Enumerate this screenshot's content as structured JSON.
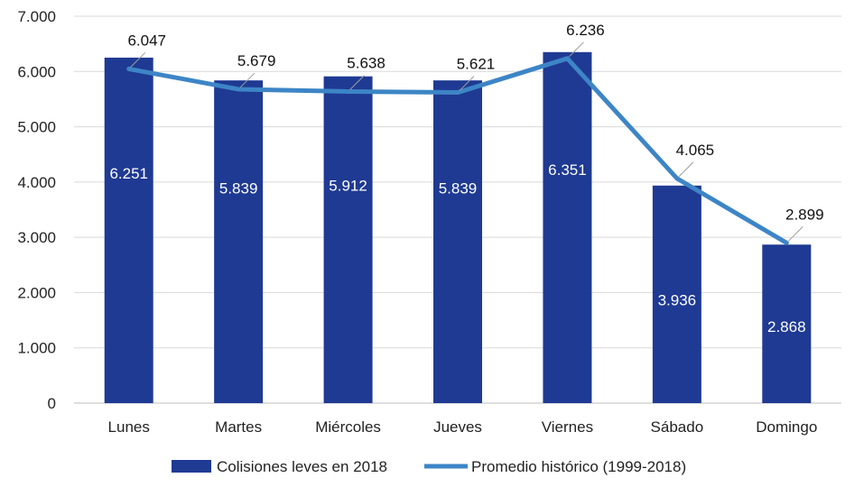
{
  "chart_data": {
    "type": "bar",
    "categories": [
      "Lunes",
      "Martes",
      "Miércoles",
      "Jueves",
      "Viernes",
      "Sábado",
      "Domingo"
    ],
    "series": [
      {
        "name": "Colisiones leves en 2018",
        "kind": "bar",
        "color": "#1f3a93",
        "values": [
          6251,
          5839,
          5912,
          5839,
          6351,
          3936,
          2868
        ],
        "labels": [
          "6.251",
          "5.839",
          "5.912",
          "5.839",
          "6.351",
          "3.936",
          "2.868"
        ]
      },
      {
        "name": "Promedio histórico (1999-2018)",
        "kind": "line",
        "color": "#3d85c6",
        "values": [
          6047,
          5679,
          5638,
          5621,
          6236,
          4065,
          2899
        ],
        "labels": [
          "6.047",
          "5.679",
          "5.638",
          "5.621",
          "6.236",
          "4.065",
          "2.899"
        ]
      }
    ],
    "yticks": [
      0,
      1000,
      2000,
      3000,
      4000,
      5000,
      6000,
      7000
    ],
    "ytick_labels": [
      "0",
      "1.000",
      "2.000",
      "3.000",
      "4.000",
      "5.000",
      "6.000",
      "7.000"
    ],
    "ylim": [
      0,
      7000
    ],
    "grid": true,
    "legend": "bottom"
  }
}
